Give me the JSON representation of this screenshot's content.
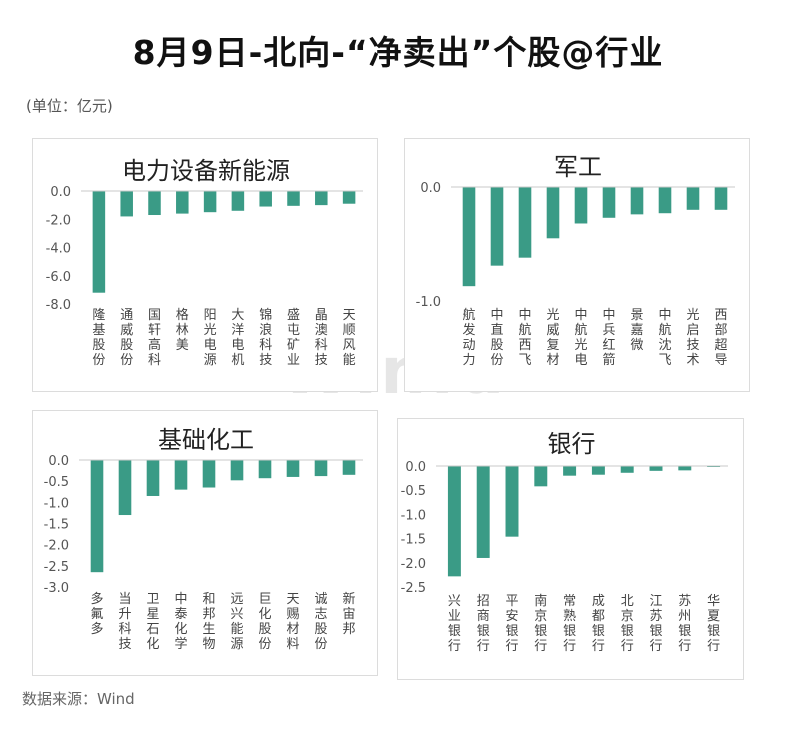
{
  "title": "8月9日-北向-“净卖出”个股@行业",
  "unit_label": "(单位：亿元)",
  "source_label": "数据来源：Wind",
  "watermark": "Win.d",
  "colors": {
    "bar": "#3a9b86"
  },
  "chart_data": [
    {
      "type": "bar",
      "title": "电力设备新能源",
      "categories": [
        "隆基股份",
        "通威股份",
        "国轩高科",
        "格林美",
        "阳光电源",
        "大洋电机",
        "锦浪科技",
        "盛屯矿业",
        "晶澳科技",
        "天顺风能"
      ],
      "values": [
        -7.2,
        -1.8,
        -1.7,
        -1.6,
        -1.5,
        -1.4,
        -1.1,
        -1.05,
        -1.0,
        -0.9
      ],
      "ylim": [
        -8,
        0
      ],
      "yticks": [
        "0.0",
        "-2.0",
        "-4.0",
        "-6.0",
        "-8.0"
      ],
      "ytick_values": [
        0,
        -2,
        -4,
        -6,
        -8
      ]
    },
    {
      "type": "bar",
      "title": "军工",
      "categories": [
        "航发动力",
        "中直股份",
        "中航西飞",
        "光威复材",
        "中航光电",
        "中兵红箭",
        "景嘉微",
        "中航沈飞",
        "光启技术",
        "西部超导"
      ],
      "values": [
        -0.87,
        -0.69,
        -0.62,
        -0.45,
        -0.32,
        -0.27,
        -0.24,
        -0.23,
        -0.2,
        -0.2
      ],
      "ylim": [
        -1,
        0
      ],
      "yticks": [
        "0.0",
        "-1.0"
      ],
      "ytick_values": [
        0,
        -1
      ]
    },
    {
      "type": "bar",
      "title": "基础化工",
      "categories": [
        "多氟多",
        "当升科技",
        "卫星石化",
        "中泰化学",
        "和邦生物",
        "远兴能源",
        "巨化股份",
        "天赐材料",
        "诚志股份",
        "新宙邦"
      ],
      "values": [
        -2.65,
        -1.3,
        -0.85,
        -0.7,
        -0.65,
        -0.48,
        -0.43,
        -0.4,
        -0.38,
        -0.35
      ],
      "ylim": [
        -3,
        0
      ],
      "yticks": [
        "0.0",
        "-0.5",
        "-1.0",
        "-1.5",
        "-2.0",
        "-2.5",
        "-3.0"
      ],
      "ytick_values": [
        0,
        -0.5,
        -1,
        -1.5,
        -2,
        -2.5,
        -3
      ]
    },
    {
      "type": "bar",
      "title": "银行",
      "categories": [
        "兴业银行",
        "招商银行",
        "平安银行",
        "南京银行",
        "常熟银行",
        "成都银行",
        "北京银行",
        "江苏银行",
        "苏州银行",
        "华夏银行"
      ],
      "values": [
        -2.28,
        -1.9,
        -1.46,
        -0.42,
        -0.2,
        -0.18,
        -0.14,
        -0.1,
        -0.09,
        -0.02
      ],
      "ylim": [
        -2.5,
        0
      ],
      "yticks": [
        "0.0",
        "-0.5",
        "-1.0",
        "-1.5",
        "-2.0",
        "-2.5"
      ],
      "ytick_values": [
        0,
        -0.5,
        -1,
        -1.5,
        -2,
        -2.5
      ]
    }
  ]
}
